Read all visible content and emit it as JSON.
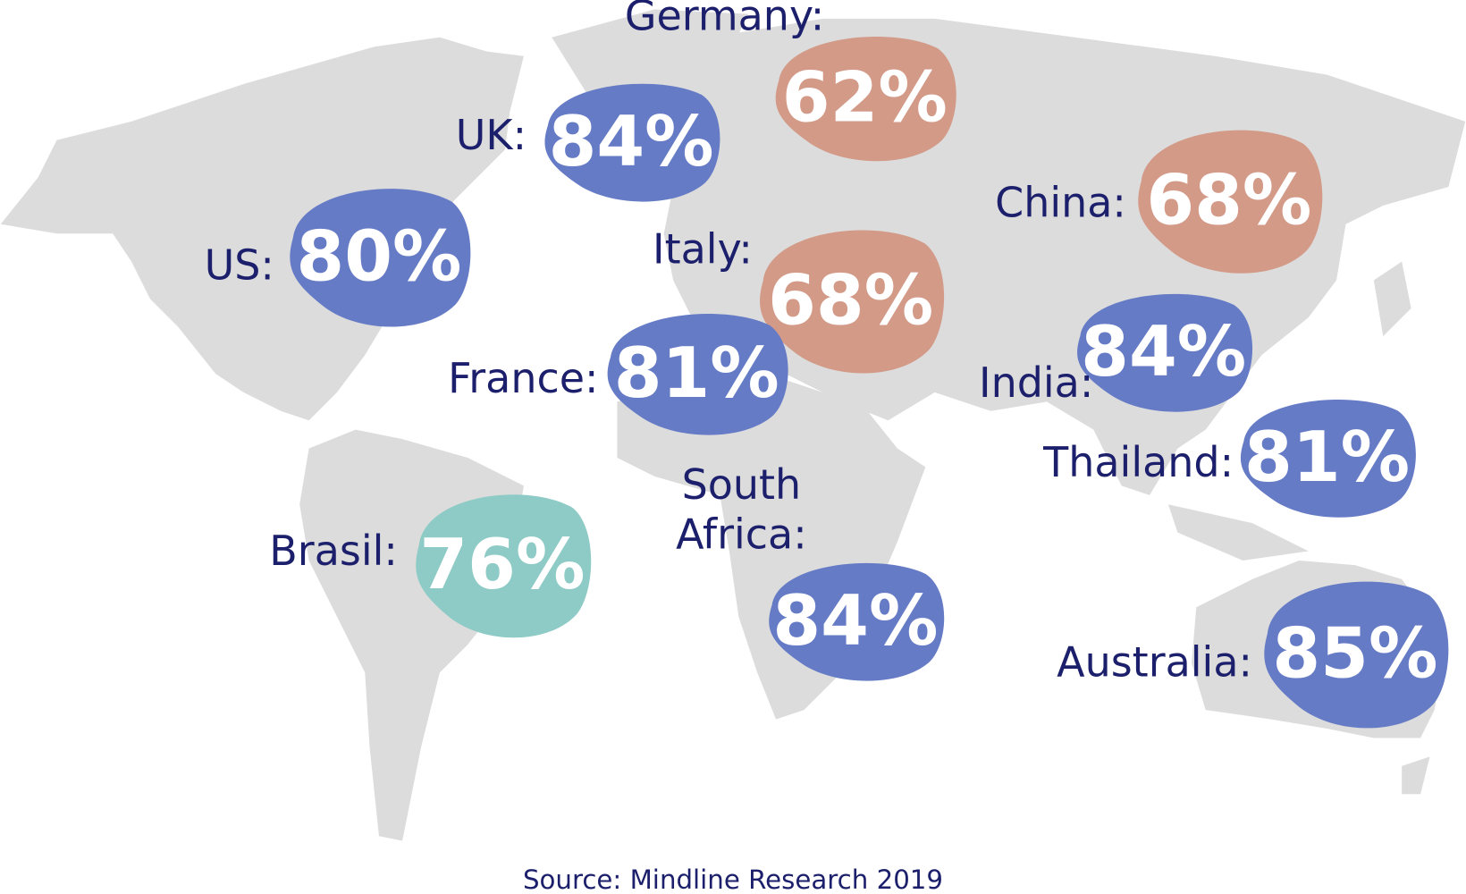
{
  "callouts": [
    {
      "label": "Germany:",
      "value": "62%",
      "color": "#d39a88"
    },
    {
      "label": "UK:",
      "value": "84%",
      "color": "#667bc6"
    },
    {
      "label": "US:",
      "value": "80%",
      "color": "#667bc6"
    },
    {
      "label": "Italy:",
      "value": "68%",
      "color": "#d39a88"
    },
    {
      "label": "France:",
      "value": "81%",
      "color": "#667bc6"
    },
    {
      "label": "China:",
      "value": "68%",
      "color": "#d39a88"
    },
    {
      "label": "India:",
      "value": "84%",
      "color": "#667bc6"
    },
    {
      "label": "Thailand:",
      "value": "81%",
      "color": "#667bc6"
    },
    {
      "label": "Brasil:",
      "value": "76%",
      "color": "#8ecbc6"
    },
    {
      "label": [
        "South",
        "Africa:"
      ],
      "value": "84%",
      "color": "#667bc6"
    },
    {
      "label": "Australia:",
      "value": "85%",
      "color": "#667bc6"
    }
  ],
  "source": "Source: Mindline Research 2019"
}
